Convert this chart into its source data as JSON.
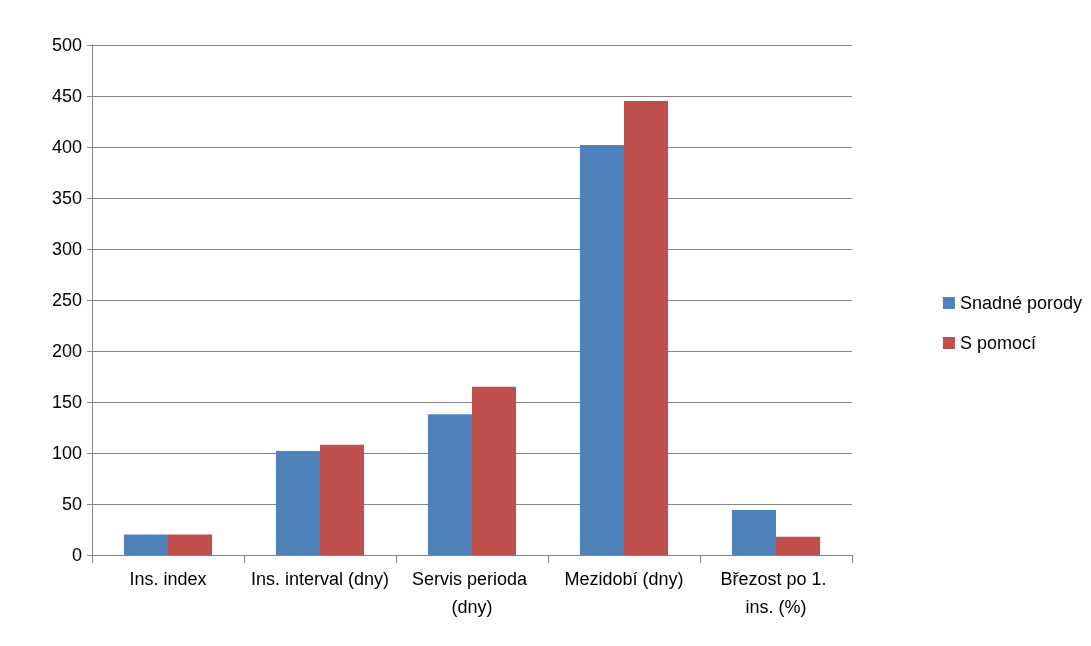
{
  "chart_data": {
    "type": "bar",
    "categories": [
      "Ins. index",
      "Ins. interval (dny)",
      "Servis perioda (dny)",
      "Mezidobí (dny)",
      "Březost po 1. ins. (%)"
    ],
    "series": [
      {
        "name": "Snadné porody",
        "color": "#4f81bd",
        "values": [
          20,
          102,
          138,
          402,
          44
        ]
      },
      {
        "name": "S pomocí",
        "color": "#c0504d",
        "values": [
          20,
          108,
          165,
          445,
          18
        ]
      }
    ],
    "ylim": [
      0,
      500
    ],
    "yticks": [
      0,
      50,
      100,
      150,
      200,
      250,
      300,
      350,
      400,
      450,
      500
    ],
    "grid": "y",
    "legend": "right"
  }
}
